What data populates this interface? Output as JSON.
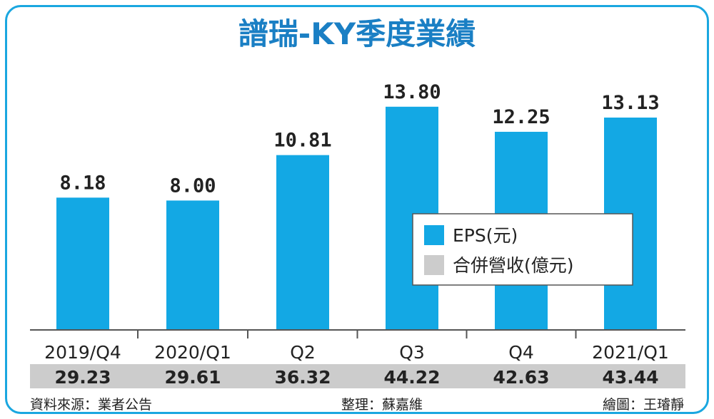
{
  "chart_data": {
    "type": "bar",
    "title": "譜瑞-KY季度業績",
    "categories": [
      "2019/Q4",
      "2020/Q1",
      "Q2",
      "Q3",
      "Q4",
      "2021/Q1"
    ],
    "series": [
      {
        "name": "EPS(元)",
        "values": [
          8.18,
          8.0,
          10.81,
          13.8,
          12.25,
          13.13
        ],
        "value_labels": [
          "8.18",
          "8.00",
          "10.81",
          "13.80",
          "12.25",
          "13.13"
        ],
        "color": "#13a8e4"
      },
      {
        "name": "合併營收(億元)",
        "values": [
          29.23,
          29.61,
          36.32,
          44.22,
          42.63,
          43.44
        ],
        "value_labels": [
          "29.23",
          "29.61",
          "36.32",
          "44.22",
          "42.63",
          "43.44"
        ],
        "color": "#cccccc"
      }
    ],
    "ylim": [
      0,
      15.2
    ],
    "legend_placement": "center-right"
  },
  "footer": {
    "source": "資料來源：業者公告",
    "editor": "整理：蘇嘉維",
    "illustrator": "繪圖：王璿靜"
  }
}
